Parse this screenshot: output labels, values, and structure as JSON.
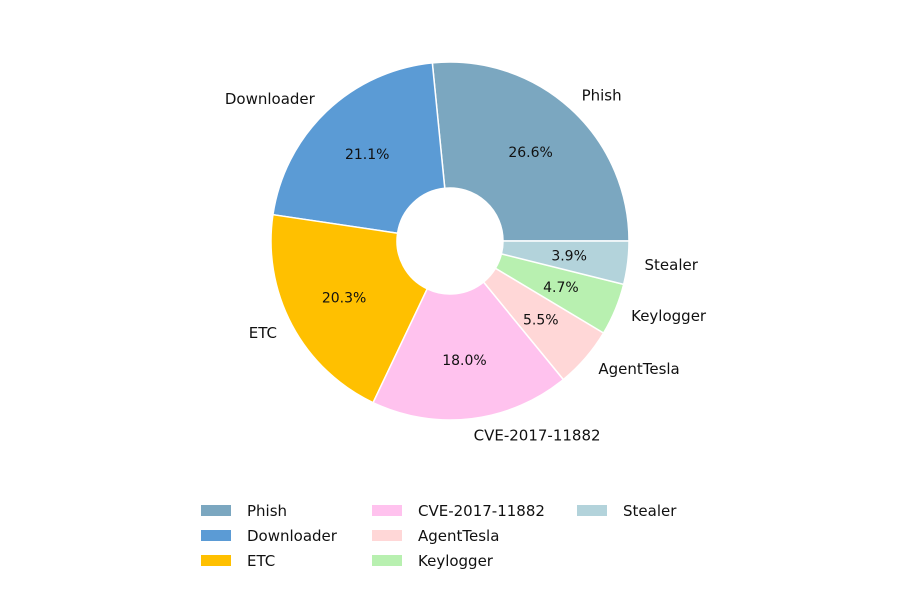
{
  "chart_data": {
    "type": "pie",
    "donut": true,
    "categories": [
      "Phish",
      "Downloader",
      "ETC",
      "CVE-2017-11882",
      "AgentTesla",
      "Keylogger",
      "Stealer"
    ],
    "values": [
      26.6,
      21.1,
      20.3,
      18.0,
      5.5,
      4.7,
      3.9
    ],
    "value_labels": [
      "26.6%",
      "21.1%",
      "20.3%",
      "18.0%",
      "5.5%",
      "4.7%",
      "3.9%"
    ],
    "colors": [
      "#7ba7c0",
      "#5b9bd5",
      "#ffc000",
      "#ffc2ee",
      "#ffd7d7",
      "#b8f0b0",
      "#b3d3db"
    ],
    "start_angle_deg": 0,
    "direction": "counterclockwise",
    "legend": {
      "placement": "bottom",
      "columns": 3,
      "entries": [
        "Phish",
        "Downloader",
        "ETC",
        "CVE-2017-11882",
        "AgentTesla",
        "Keylogger",
        "Stealer"
      ]
    }
  }
}
